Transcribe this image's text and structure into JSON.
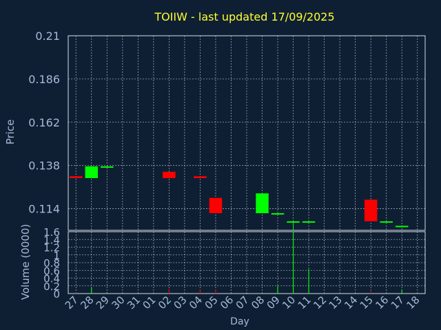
{
  "colors": {
    "background": "#0f1f33",
    "title": "#ffff33",
    "axis_text": "#a4bbd8",
    "grid": "#c9d3de",
    "frame": "#d6dde5",
    "up": "#00ff00",
    "down": "#ff0000"
  },
  "chart_data": [
    {
      "type": "candlestick",
      "title": "TOIIW - last updated 17/09/2025",
      "ylabel": "Price",
      "ylim": [
        0.102,
        0.21
      ],
      "yticks": [
        "0.21",
        "0.186",
        "0.162",
        "0.138",
        "0.114"
      ],
      "ytick_values": [
        0.21,
        0.186,
        0.162,
        0.138,
        0.114
      ],
      "grid": true,
      "x": [
        "27",
        "28",
        "29",
        "30",
        "31",
        "01",
        "02",
        "03",
        "04",
        "05",
        "06",
        "07",
        "08",
        "09",
        "10",
        "11",
        "12",
        "13",
        "14",
        "15",
        "16",
        "17",
        "18"
      ],
      "candles": [
        {
          "x": "27",
          "open": 0.132,
          "close": 0.131,
          "high": 0.132,
          "low": 0.131
        },
        {
          "x": "28",
          "open": 0.131,
          "close": 0.1375,
          "high": 0.1375,
          "low": 0.131
        },
        {
          "x": "29",
          "open": 0.137,
          "close": 0.1375,
          "high": 0.1375,
          "low": 0.137
        },
        {
          "x": "02",
          "open": 0.1345,
          "close": 0.131,
          "high": 0.1345,
          "low": 0.131
        },
        {
          "x": "04",
          "open": 0.132,
          "close": 0.131,
          "high": 0.132,
          "low": 0.131
        },
        {
          "x": "05",
          "open": 0.12,
          "close": 0.1115,
          "high": 0.12,
          "low": 0.1115
        },
        {
          "x": "08",
          "open": 0.1115,
          "close": 0.1225,
          "high": 0.1225,
          "low": 0.1115
        },
        {
          "x": "09",
          "open": 0.111,
          "close": 0.1115,
          "high": 0.1115,
          "low": 0.111
        },
        {
          "x": "10",
          "open": 0.1065,
          "close": 0.107,
          "high": 0.107,
          "low": 0.102
        },
        {
          "x": "11",
          "open": 0.1065,
          "close": 0.107,
          "high": 0.107,
          "low": 0.1065
        },
        {
          "x": "15",
          "open": 0.119,
          "close": 0.107,
          "high": 0.119,
          "low": 0.107
        },
        {
          "x": "16",
          "open": 0.1065,
          "close": 0.107,
          "high": 0.107,
          "low": 0.1065
        },
        {
          "x": "17",
          "open": 0.104,
          "close": 0.1045,
          "high": 0.1045,
          "low": 0.104
        }
      ]
    },
    {
      "type": "bar",
      "ylabel": "Volume (0000)",
      "xlabel": "Day",
      "ylim": [
        0,
        1.6
      ],
      "yticks": [
        "1.6",
        "1.4",
        "1.2",
        "1",
        "0.8",
        "0.6",
        "0.4",
        "0.2",
        "0"
      ],
      "ytick_values": [
        1.6,
        1.4,
        1.2,
        1.0,
        0.8,
        0.6,
        0.4,
        0.2,
        0
      ],
      "grid": true,
      "categories": [
        "27",
        "28",
        "29",
        "30",
        "31",
        "01",
        "02",
        "03",
        "04",
        "05",
        "06",
        "07",
        "08",
        "09",
        "10",
        "11",
        "12",
        "13",
        "14",
        "15",
        "16",
        "17",
        "18"
      ],
      "bars": [
        {
          "x": "27",
          "value": 0.02,
          "color": "down"
        },
        {
          "x": "28",
          "value": 0.15,
          "color": "up"
        },
        {
          "x": "29",
          "value": 0.03,
          "color": "up"
        },
        {
          "x": "02",
          "value": 0.12,
          "color": "down"
        },
        {
          "x": "04",
          "value": 0.1,
          "color": "down"
        },
        {
          "x": "05",
          "value": 0.1,
          "color": "down"
        },
        {
          "x": "08",
          "value": 0.02,
          "color": "up"
        },
        {
          "x": "09",
          "value": 0.2,
          "color": "up"
        },
        {
          "x": "10",
          "value": 1.6,
          "color": "up"
        },
        {
          "x": "11",
          "value": 0.63,
          "color": "up"
        },
        {
          "x": "15",
          "value": 0.05,
          "color": "down"
        },
        {
          "x": "16",
          "value": 0.02,
          "color": "up"
        },
        {
          "x": "17",
          "value": 0.1,
          "color": "up"
        }
      ]
    }
  ]
}
